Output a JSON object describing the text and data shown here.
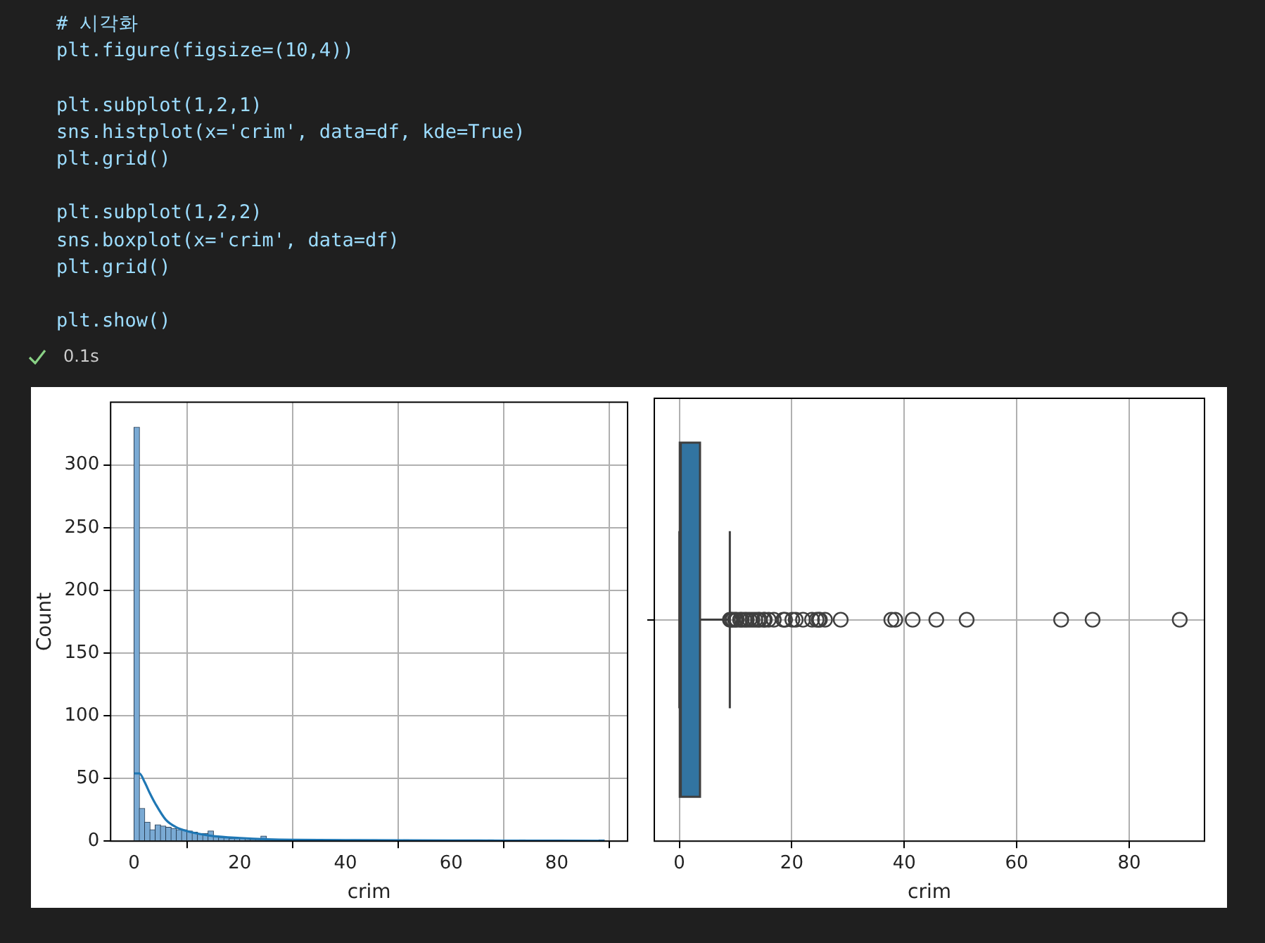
{
  "chart_data": [
    {
      "type": "histogram",
      "xlabel": "crim",
      "ylabel": "Count",
      "xlim": [
        -4.45,
        93.4
      ],
      "ylim": [
        0,
        350
      ],
      "xticks": [
        0,
        20,
        40,
        60,
        80
      ],
      "yticks": [
        0,
        50,
        100,
        150,
        200,
        250,
        300
      ],
      "grid": true,
      "annotations": [
        "# 시각화\nplt.figure(figsize=(10,4))\n\nplt.subplot(1,2,1)\nsns.histplot(x='crim', data=df, kde=True)\nplt.grid()\n\nplt.subplot(1,2,2)\nsns.boxplot(x='crim', data=df)\nplt.grid()\n\nplt.show()",
        "0.1s"
      ],
      "series": [
        {
          "type": "histogram",
          "color": "#7aaad4",
          "bins": [
            0,
            1,
            2,
            3,
            4,
            5,
            6,
            7,
            8,
            9,
            10,
            11,
            12,
            13,
            14,
            15,
            16,
            17,
            18,
            19,
            20,
            21,
            22,
            23,
            24,
            25,
            26,
            27,
            28,
            29,
            30,
            31,
            32,
            33,
            34,
            35,
            36,
            37,
            38,
            39,
            40,
            41,
            42,
            43,
            44,
            45,
            46,
            47,
            48,
            49,
            50,
            51,
            52,
            53,
            54,
            55,
            56,
            57,
            58,
            59,
            60,
            61,
            62,
            63,
            64,
            65,
            66,
            67,
            68,
            69,
            70,
            71,
            72,
            73,
            74,
            75,
            76,
            77,
            78,
            79,
            80,
            81,
            82,
            83,
            84,
            85,
            86,
            87,
            88,
            89
          ],
          "values": [
            330,
            26,
            15,
            9,
            13,
            12,
            11,
            10,
            9,
            9,
            8,
            7,
            6,
            6,
            8,
            4,
            3,
            3,
            2,
            2,
            2,
            1,
            1,
            1,
            4,
            0,
            1,
            0,
            1,
            0,
            0,
            0,
            0,
            0,
            0,
            0,
            0,
            1,
            1,
            0,
            0,
            1,
            0,
            0,
            0,
            1,
            0,
            0,
            0,
            0,
            0,
            1,
            0,
            0,
            0,
            0,
            0,
            0,
            0,
            0,
            0,
            0,
            0,
            0,
            0,
            0,
            0,
            1,
            0,
            0,
            0,
            0,
            0,
            1,
            0,
            0,
            0,
            0,
            0,
            0,
            0,
            0,
            0,
            0,
            0,
            0,
            0,
            0,
            1
          ]
        },
        {
          "type": "line",
          "color": "#1f77b4",
          "x": [
            0,
            1,
            2,
            3,
            4,
            6,
            8,
            10,
            12,
            15,
            20,
            25,
            30,
            40,
            50,
            60,
            70,
            80,
            89
          ],
          "values": [
            54,
            54,
            47,
            38,
            30,
            17,
            11,
            8,
            6,
            4,
            2.5,
            1.5,
            1,
            0.8,
            0.6,
            0.5,
            0.4,
            0.3,
            0.2
          ]
        }
      ]
    },
    {
      "type": "box",
      "orientation": "horizontal",
      "xlabel": "crim",
      "xlim": [
        -4.45,
        93.4
      ],
      "xticks": [
        0,
        20,
        40,
        60,
        80
      ],
      "grid": true,
      "tick_labels": "x",
      "categories": [
        null
      ],
      "color": "#3274a1",
      "boxes": [
        {
          "low": 0.006,
          "q1": 0.08,
          "median": 0.26,
          "q3": 3.68,
          "high": 8.98,
          "outliers": [
            9.0,
            9.2,
            9.5,
            9.9,
            10.2,
            10.8,
            11.1,
            11.6,
            12.0,
            12.5,
            13.0,
            13.5,
            14.0,
            14.3,
            15.0,
            15.2,
            15.9,
            16.8,
            18.5,
            18.8,
            20.1,
            20.7,
            22.0,
            23.6,
            24.4,
            24.8,
            25.0,
            25.9,
            28.7,
            37.7,
            38.4,
            41.5,
            45.7,
            51.1,
            67.9,
            73.5,
            89.0
          ]
        }
      ]
    }
  ]
}
